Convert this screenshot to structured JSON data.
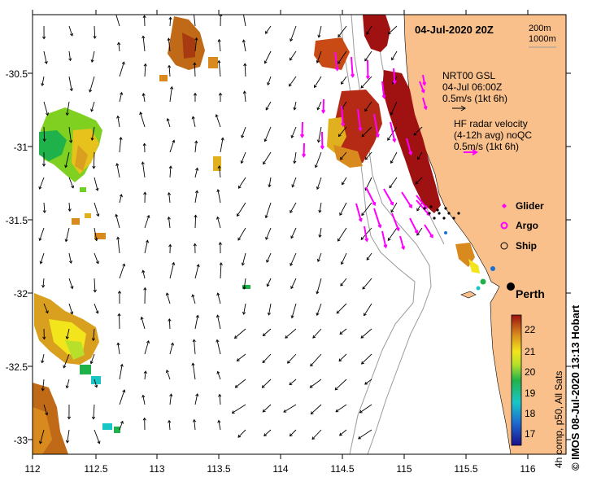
{
  "map": {
    "title": "04-Jul-2020 20Z",
    "lon_ticks": [
      "112",
      "112.5",
      "113",
      "113.5",
      "114",
      "114.5",
      "115",
      "115.5",
      "116"
    ],
    "lat_ticks": [
      "-30.5",
      "-31",
      "-31.5",
      "-32",
      "-32.5",
      "-33"
    ],
    "isobaths": [
      "200m",
      "1000m"
    ],
    "credit": "IMOS 08-Jul-2020 13:13 Hobart",
    "copyright": "©",
    "colorbar_label": "4h comp, p50, All Sats",
    "colorbar_ticks": [
      "22",
      "21",
      "20",
      "19",
      "18",
      "17"
    ],
    "legend": {
      "nrt_title": "NRT00 GSL",
      "nrt_time": "04-Jul 06:00Z",
      "nrt_scale": "0.5m/s (1kt 6h)",
      "hf_title": "HF radar velocity",
      "hf_sub": "(4-12h avg) noQC",
      "hf_scale": "0.5m/s (1kt 6h)",
      "glider": "Glider",
      "argo": "Argo",
      "ship": "Ship"
    },
    "city": "Perth",
    "colors": {
      "land": "#f9c08c",
      "hf_vector": "#ff00ff",
      "ship_dot": "#000000"
    }
  }
}
